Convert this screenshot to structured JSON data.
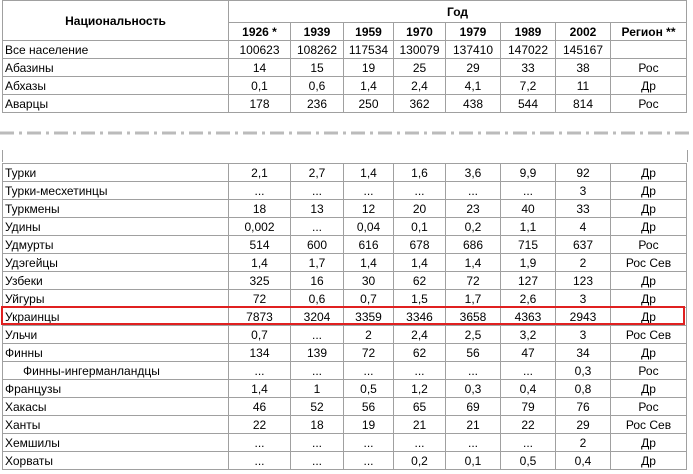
{
  "header": {
    "name_column": "Национальность",
    "year_group": "Год",
    "columns": [
      "1926 *",
      "1939",
      "1959",
      "1970",
      "1979",
      "1989",
      "2002",
      "Регион **"
    ]
  },
  "top_rows": [
    {
      "name": "Все население",
      "cells": [
        "100623",
        "108262",
        "117534",
        "130079",
        "137410",
        "147022",
        "145167"
      ]
    },
    {
      "name": "Абазины",
      "cells": [
        "14",
        "15",
        "19",
        "25",
        "29",
        "33",
        "38",
        "Рос"
      ]
    },
    {
      "name": "Абхазы",
      "cells": [
        "0,1",
        "0,6",
        "1,4",
        "2,4",
        "4,1",
        "7,2",
        "11",
        "Др"
      ]
    },
    {
      "name": "Аварцы",
      "cells": [
        "178",
        "236",
        "250",
        "362",
        "438",
        "544",
        "814",
        "Рос"
      ]
    }
  ],
  "bottom_rows": [
    {
      "name": "Турки",
      "cells": [
        "2,1",
        "2,7",
        "1,4",
        "1,6",
        "3,6",
        "9,9",
        "92",
        "Др"
      ]
    },
    {
      "name": "Турки-месхетинцы",
      "cells": [
        "...",
        "...",
        "...",
        "...",
        "...",
        "...",
        "3",
        "Др"
      ]
    },
    {
      "name": "Туркмены",
      "cells": [
        "18",
        "13",
        "12",
        "20",
        "23",
        "40",
        "33",
        "Др"
      ]
    },
    {
      "name": "Удины",
      "cells": [
        "0,002",
        "...",
        "0,04",
        "0,1",
        "0,2",
        "1,1",
        "4",
        "Др"
      ]
    },
    {
      "name": "Удмурты",
      "cells": [
        "514",
        "600",
        "616",
        "678",
        "686",
        "715",
        "637",
        "Рос"
      ]
    },
    {
      "name": "Удэгейцы",
      "cells": [
        "1,4",
        "1,7",
        "1,4",
        "1,4",
        "1,4",
        "1,9",
        "2",
        "Рос Сев"
      ]
    },
    {
      "name": "Узбеки",
      "cells": [
        "325",
        "16",
        "30",
        "62",
        "72",
        "127",
        "123",
        "Др"
      ]
    },
    {
      "name": "Уйгуры",
      "cells": [
        "72",
        "0,6",
        "0,7",
        "1,5",
        "1,7",
        "2,6",
        "3",
        "Др"
      ]
    },
    {
      "name": "Украинцы",
      "cells": [
        "7873",
        "3204",
        "3359",
        "3346",
        "3658",
        "4363",
        "2943",
        "Др"
      ]
    },
    {
      "name": "Ульчи",
      "cells": [
        "0,7",
        "...",
        "2",
        "2,4",
        "2,5",
        "3,2",
        "3",
        "Рос Сев"
      ]
    },
    {
      "name": "Финны",
      "cells": [
        "134",
        "139",
        "72",
        "62",
        "56",
        "47",
        "34",
        "Др"
      ]
    },
    {
      "name": "Финны-ингерманландцы",
      "indented": true,
      "cells": [
        "...",
        "...",
        "...",
        "...",
        "...",
        "...",
        "0,3",
        "Рос"
      ]
    },
    {
      "name": "Французы",
      "cells": [
        "1,4",
        "1",
        "0,5",
        "1,2",
        "0,3",
        "0,4",
        "0,8",
        "Др"
      ]
    },
    {
      "name": "Хакасы",
      "cells": [
        "46",
        "52",
        "56",
        "65",
        "69",
        "79",
        "76",
        "Рос"
      ]
    },
    {
      "name": "Ханты",
      "cells": [
        "22",
        "18",
        "19",
        "21",
        "21",
        "22",
        "29",
        "Рос Сев"
      ]
    },
    {
      "name": "Хемшилы",
      "cells": [
        "...",
        "...",
        "...",
        "...",
        "...",
        "...",
        "2",
        "Др"
      ]
    },
    {
      "name": "Хорваты",
      "cells": [
        "...",
        "...",
        "...",
        "0,2",
        "0,1",
        "0,5",
        "0,4",
        "Др"
      ]
    }
  ]
}
